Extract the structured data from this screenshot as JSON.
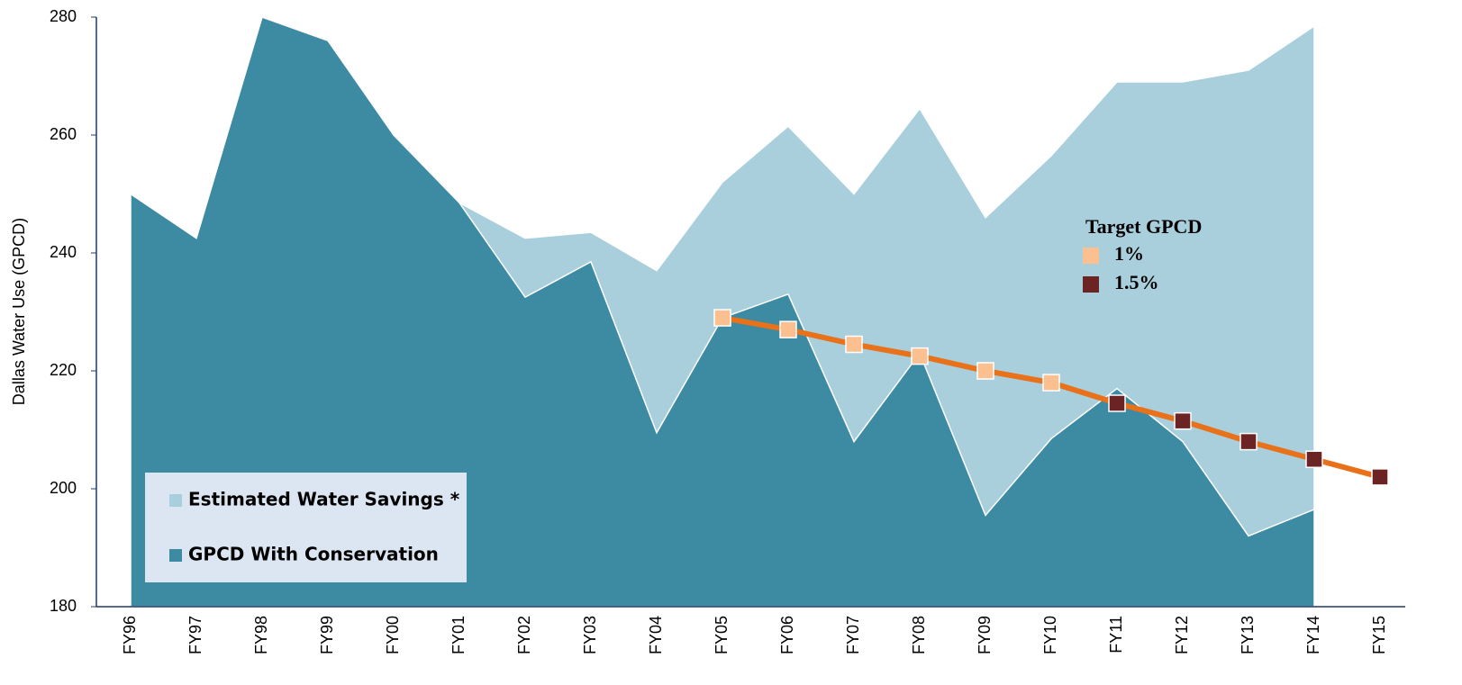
{
  "chart_data": {
    "type": "area",
    "y_label": "Dallas Water Use (GPCD)",
    "categories": [
      "FY96",
      "FY97",
      "FY98",
      "FY99",
      "FY00",
      "FY01",
      "FY02",
      "FY03",
      "FY04",
      "FY05",
      "FY06",
      "FY07",
      "FY08",
      "FY09",
      "FY10",
      "FY11",
      "FY12",
      "FY13",
      "FY14",
      "FY15"
    ],
    "series": [
      {
        "name": "Estimated Water Savings *",
        "color": "#a9cfdc",
        "values": [
          250,
          242.5,
          280,
          276,
          260,
          248.5,
          242.5,
          243.5,
          237,
          252,
          261.5,
          250,
          264.5,
          246,
          256.5,
          269,
          269,
          271,
          278.5,
          null
        ]
      },
      {
        "name": "GPCD With Conservation",
        "color": "#3d8ba3",
        "values": [
          250,
          242.5,
          280,
          276,
          260,
          248.5,
          232.5,
          238.5,
          209.5,
          229,
          233,
          208,
          223,
          195.5,
          208.5,
          217,
          208,
          192,
          196.5,
          null
        ]
      }
    ],
    "target_title": "Target GPCD",
    "target_line_color": "#e8711a",
    "targets": [
      {
        "name": "1%",
        "color": "#fbbf90",
        "values": [
          null,
          null,
          null,
          null,
          null,
          null,
          null,
          null,
          null,
          229,
          227,
          224.5,
          222.5,
          220,
          218,
          null,
          null,
          null,
          null,
          null
        ]
      },
      {
        "name": "1.5%",
        "color": "#6b2324",
        "values": [
          null,
          null,
          null,
          null,
          null,
          null,
          null,
          null,
          null,
          null,
          null,
          null,
          null,
          null,
          null,
          214.5,
          211.5,
          208,
          205,
          202
        ]
      }
    ],
    "ylim": [
      180,
      280
    ],
    "yticks": [
      180,
      200,
      220,
      240,
      260,
      280
    ]
  }
}
